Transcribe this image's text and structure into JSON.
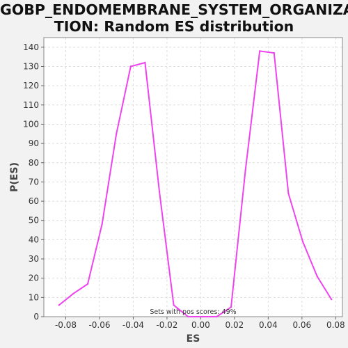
{
  "title_lines": [
    "GOBP_ENDOMEMBRANE_SYSTEM_ORGANIZA",
    "TION: Random ES distribution"
  ],
  "chart_data": {
    "type": "line",
    "title": "GOBP_ENDOMEMBRANE_SYSTEM_ORGANIZATION: Random ES distribution",
    "xlabel": "ES",
    "ylabel": "P(ES)",
    "xlim": [
      -0.093,
      0.084
    ],
    "ylim": [
      0,
      145
    ],
    "xticks": [
      -0.08,
      -0.06,
      -0.04,
      -0.02,
      0.0,
      0.02,
      0.04,
      0.06,
      0.08
    ],
    "xtick_labels": [
      "-0.08",
      "-0.06",
      "-0.04",
      "-0.02",
      "0.00",
      "0.02",
      "0.04",
      "0.06",
      "0.08"
    ],
    "yticks": [
      0,
      10,
      20,
      30,
      40,
      50,
      60,
      70,
      80,
      90,
      100,
      110,
      120,
      130,
      140
    ],
    "grid": true,
    "line_color": "#ee44ee",
    "annotation": "Sets with pos scores: 49%",
    "x": [
      -0.084,
      -0.0755,
      -0.067,
      -0.0585,
      -0.05,
      -0.0415,
      -0.033,
      -0.0245,
      -0.016,
      -0.0075,
      0.001,
      0.0095,
      0.018,
      0.0265,
      0.035,
      0.0435,
      0.052,
      0.0605,
      0.069,
      0.0775
    ],
    "y": [
      6,
      12,
      17,
      48,
      95,
      130,
      132,
      65,
      6,
      0,
      0,
      0,
      5,
      76,
      138,
      137,
      64,
      39,
      21,
      9
    ]
  }
}
